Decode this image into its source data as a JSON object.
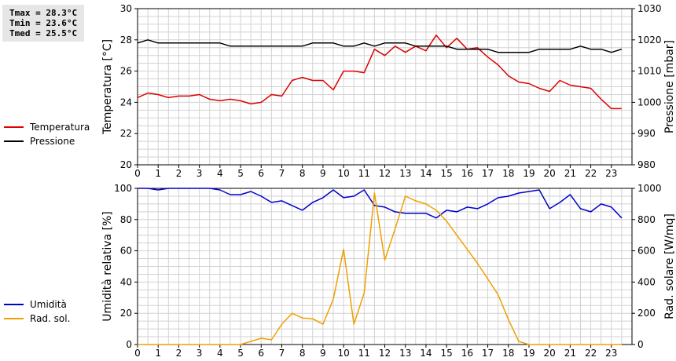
{
  "stats": {
    "tmax": "Tmax = 28.3°C",
    "tmin": "Tmin = 23.6°C",
    "tmed": "Tmed = 25.5°C"
  },
  "chart_data": [
    {
      "type": "line",
      "x_ticks": [
        0,
        1,
        2,
        3,
        4,
        5,
        6,
        7,
        8,
        9,
        10,
        11,
        12,
        13,
        14,
        15,
        16,
        17,
        18,
        19,
        20,
        21,
        22,
        23
      ],
      "xlim": [
        0,
        24
      ],
      "ylabel": "Temperatura [°C]",
      "ylim": [
        20,
        30
      ],
      "y_ticks": [
        20,
        22,
        24,
        26,
        28,
        30
      ],
      "y2label": "Pressione [mbar]",
      "y2lim": [
        980,
        1030
      ],
      "y2_ticks": [
        980,
        990,
        1000,
        1010,
        1020,
        1030
      ],
      "grid": true,
      "legend": "left of plot",
      "series": [
        {
          "name": "Temperatura",
          "axis": "left",
          "color": "#dd0000",
          "x": [
            0,
            0.5,
            1,
            1.5,
            2,
            2.5,
            3,
            3.5,
            4,
            4.5,
            5,
            5.5,
            6,
            6.5,
            7,
            7.5,
            8,
            8.5,
            9,
            9.5,
            10,
            10.5,
            11,
            11.5,
            12,
            12.5,
            13,
            13.5,
            14,
            14.5,
            15,
            15.5,
            16,
            16.5,
            17,
            17.5,
            18,
            18.5,
            19,
            19.5,
            20,
            20.5,
            21,
            21.5,
            22,
            22.5,
            23,
            23.5
          ],
          "values": [
            24.3,
            24.6,
            24.5,
            24.3,
            24.4,
            24.4,
            24.5,
            24.2,
            24.1,
            24.2,
            24.1,
            23.9,
            24.0,
            24.5,
            24.4,
            25.4,
            25.6,
            25.4,
            25.4,
            24.8,
            26.0,
            26.0,
            25.9,
            27.4,
            27.0,
            27.6,
            27.2,
            27.6,
            27.3,
            28.3,
            27.5,
            28.1,
            27.4,
            27.5,
            26.9,
            26.4,
            25.7,
            25.3,
            25.2,
            24.9,
            24.7,
            25.4,
            25.1,
            25.0,
            24.9,
            24.2,
            23.6,
            23.6
          ]
        },
        {
          "name": "Pressione",
          "axis": "right",
          "color": "#000000",
          "x": [
            0,
            0.5,
            1,
            1.5,
            2,
            2.5,
            3,
            3.5,
            4,
            4.5,
            5,
            5.5,
            6,
            6.5,
            7,
            7.5,
            8,
            8.5,
            9,
            9.5,
            10,
            10.5,
            11,
            11.5,
            12,
            12.5,
            13,
            13.5,
            14,
            14.5,
            15,
            15.5,
            16,
            16.5,
            17,
            17.5,
            18,
            18.5,
            19,
            19.5,
            20,
            20.5,
            21,
            21.5,
            22,
            22.5,
            23,
            23.5
          ],
          "values": [
            1019,
            1020,
            1019,
            1019,
            1019,
            1019,
            1019,
            1019,
            1019,
            1018,
            1018,
            1018,
            1018,
            1018,
            1018,
            1018,
            1018,
            1019,
            1019,
            1019,
            1018,
            1018,
            1019,
            1018,
            1019,
            1019,
            1019,
            1018,
            1018,
            1018,
            1018,
            1017,
            1017,
            1017,
            1017,
            1016,
            1016,
            1016,
            1016,
            1017,
            1017,
            1017,
            1017,
            1018,
            1017,
            1017,
            1016,
            1017
          ]
        }
      ]
    },
    {
      "type": "line",
      "x_ticks": [
        0,
        1,
        2,
        3,
        4,
        5,
        6,
        7,
        8,
        9,
        10,
        11,
        12,
        13,
        14,
        15,
        16,
        17,
        18,
        19,
        20,
        21,
        22,
        23
      ],
      "xlim": [
        0,
        24
      ],
      "ylabel": "Umidità relativa [%]",
      "ylim": [
        0,
        100
      ],
      "y_ticks": [
        0,
        20,
        40,
        60,
        80,
        100
      ],
      "y2label": "Rad. solare [W/mq]",
      "y2lim": [
        0,
        1000
      ],
      "y2_ticks": [
        0,
        200,
        400,
        600,
        800,
        1000
      ],
      "grid": true,
      "legend": "left of plot",
      "series": [
        {
          "name": "Umidità",
          "axis": "left",
          "color": "#0000cc",
          "x": [
            0,
            0.5,
            1,
            1.5,
            2,
            2.5,
            3,
            3.5,
            4,
            4.5,
            5,
            5.5,
            6,
            6.5,
            7,
            7.5,
            8,
            8.5,
            9,
            9.5,
            10,
            10.5,
            11,
            11.5,
            12,
            12.5,
            13,
            13.5,
            14,
            14.5,
            15,
            15.5,
            16,
            16.5,
            17,
            17.5,
            18,
            18.5,
            19,
            19.5,
            20,
            20.5,
            21,
            21.5,
            22,
            22.5,
            23,
            23.5
          ],
          "values": [
            100,
            100,
            99,
            100,
            100,
            100,
            100,
            100,
            99,
            96,
            96,
            98,
            95,
            91,
            92,
            89,
            86,
            91,
            94,
            99,
            94,
            95,
            99,
            89,
            88,
            85,
            84,
            84,
            84,
            81,
            86,
            85,
            88,
            87,
            90,
            94,
            95,
            97,
            98,
            99,
            87,
            91,
            96,
            87,
            85,
            90,
            88,
            81
          ]
        },
        {
          "name": "Rad. sol.",
          "axis": "right",
          "color": "#f0a000",
          "x": [
            0,
            0.5,
            1,
            1.5,
            2,
            2.5,
            3,
            3.5,
            4,
            4.5,
            5,
            5.5,
            6,
            6.5,
            7,
            7.5,
            8,
            8.5,
            9,
            9.5,
            10,
            10.5,
            11,
            11.5,
            12,
            12.5,
            13,
            13.5,
            14,
            14.5,
            15,
            15.5,
            16,
            16.5,
            17,
            17.5,
            18,
            18.5,
            19,
            19.5,
            20,
            20.5,
            21,
            21.5,
            22,
            22.5,
            23,
            23.5
          ],
          "values": [
            0,
            0,
            0,
            0,
            0,
            0,
            0,
            0,
            0,
            0,
            0,
            20,
            40,
            30,
            130,
            200,
            170,
            165,
            130,
            290,
            610,
            130,
            330,
            970,
            540,
            740,
            950,
            920,
            900,
            860,
            790,
            700,
            610,
            520,
            420,
            320,
            160,
            20,
            0,
            0,
            0,
            0,
            0,
            0,
            0,
            0,
            0,
            0
          ]
        }
      ]
    }
  ]
}
